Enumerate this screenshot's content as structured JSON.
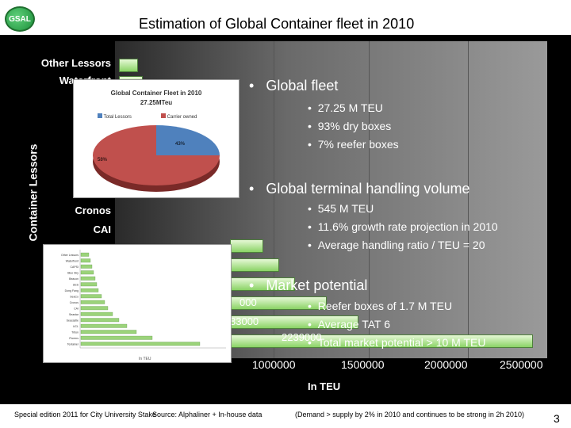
{
  "header": {
    "logo_text": "GSAL",
    "title": "Estimation of Global Container fleet in 2010"
  },
  "bg_chart": {
    "categories": [
      "Other Lessors",
      "Waterfront",
      "Cronos",
      "CAI"
    ],
    "y_axis_title": "Container Lessors",
    "x_ticks": [
      "1000000",
      "1500000",
      "2000000",
      "2500000"
    ],
    "x_title": "In TEU",
    "value_labels": [
      "000",
      "83000",
      "2239000"
    ]
  },
  "pie_card": {
    "title": "Global Container Fleet in 2010",
    "subtitle": "27.25MTeu",
    "legend": [
      "Total Lessors",
      "Carrier owned"
    ],
    "slice_labels": [
      "43%",
      "58%"
    ],
    "colors": [
      "#4f81bd",
      "#c0504d"
    ]
  },
  "small_chart": {
    "x_title": "In TEU",
    "categories": [
      "Other Lessors",
      "Waterfront",
      "CAPSI",
      "Blue Sky",
      "Beacon",
      "UES",
      "Dong Fang",
      "SeaCo",
      "Cronos",
      "CAI",
      "Seastar",
      "Seacastle",
      "UCL",
      "Triton",
      "Florens",
      "Textainer"
    ]
  },
  "bullets": {
    "global_fleet": "Global fleet",
    "gf_items": [
      "27.25 M TEU",
      "93% dry boxes",
      "7% reefer boxes"
    ],
    "terminal": "Global terminal handling volume",
    "t_items": [
      "545 M TEU",
      "11.6% growth rate projection in 2010",
      "Average handling ratio / TEU = 20"
    ],
    "market": "Market potential",
    "m_items": [
      "Reefer boxes of 1.7 M TEU",
      "Average TAT 6",
      "Total market potential > 10 M TEU"
    ]
  },
  "footer": {
    "left": "Special edition 2011 for City University Stake",
    "source": "Source: Alphaliner + In-house data",
    "right": "(Demand > supply by 2% in 2010 and continues to be strong in 2h 2010)",
    "page": "3"
  }
}
